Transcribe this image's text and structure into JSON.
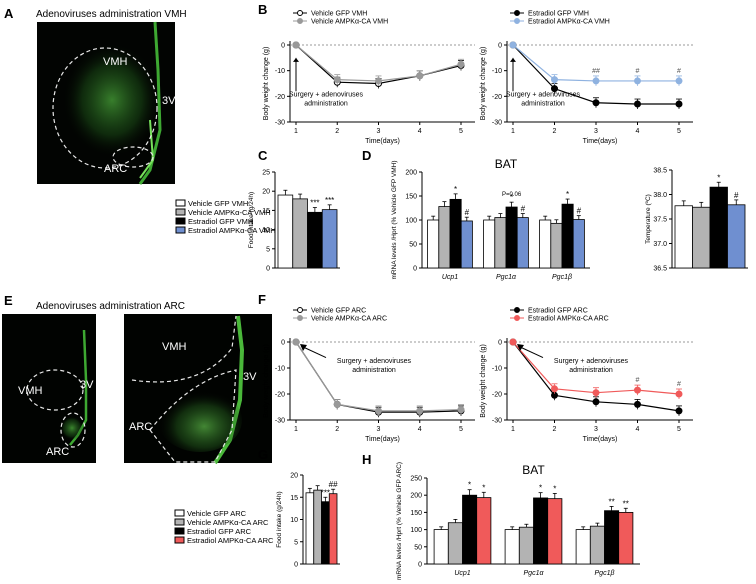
{
  "micro": {
    "a": {
      "letter": "A",
      "title": "Adenoviruses administration VMH",
      "regions": [
        "VMH",
        "3V",
        "ARC"
      ]
    },
    "e": {
      "letter": "E",
      "title": "Adenoviruses administration ARC",
      "regions_left": [
        "VMH",
        "3V",
        "ARC"
      ],
      "regions_right": [
        "VMH",
        "3V",
        "ARC"
      ]
    }
  },
  "legend_vmh": [
    "Vehicle GFP VMH",
    "Vehicle AMPKα-CA VMH",
    "Estradiol GFP VMH",
    "Estradiol AMPKα-CA VMH"
  ],
  "legend_arc": [
    "Vehicle GFP ARC",
    "Vehicle AMPKα-CA ARC",
    "Estradiol GFP ARC",
    "Estradiol AMPKα-CA ARC"
  ],
  "colors": {
    "white": "#ffffff",
    "grey": "#b3b3b3",
    "black": "#000000",
    "blue": "#6f8fd0",
    "red": "#f05a5a",
    "light_blue": "#8fb2e0"
  },
  "chart_data": [
    {
      "panel": "B-left",
      "type": "line",
      "xlabel": "Time(days)",
      "ylabel": "Body weight change (g)",
      "ylim": [
        -30,
        0
      ],
      "yticks": [
        "0",
        "-10",
        "-20",
        "-30"
      ],
      "x": [
        1,
        2,
        3,
        4,
        5
      ],
      "series": [
        {
          "name": "Vehicle GFP VMH",
          "values": [
            0,
            -14.5,
            -15,
            -12,
            -8
          ]
        },
        {
          "name": "Vehicle AMPKα-CA VMH",
          "values": [
            0,
            -13.5,
            -14,
            -12,
            -7.5
          ]
        }
      ],
      "annotation": "Surgery + adenoviruses administration"
    },
    {
      "panel": "B-right",
      "type": "line",
      "xlabel": "Time(days)",
      "ylabel": "Body weight change (g)",
      "ylim": [
        -30,
        0
      ],
      "yticks": [
        "0",
        "-10",
        "-20",
        "-30"
      ],
      "x": [
        1,
        2,
        3,
        4,
        5
      ],
      "series": [
        {
          "name": "Estradiol GFP VMH",
          "values": [
            0,
            -17,
            -22.5,
            -23,
            -23
          ]
        },
        {
          "name": "Estradiol AMPKα-CA VMH",
          "values": [
            0,
            -13.5,
            -14,
            -14,
            -14
          ]
        }
      ],
      "markers": [
        "",
        "",
        "##",
        "#",
        "#"
      ],
      "annotation": "Surgery + adenoviruses administration"
    },
    {
      "panel": "C",
      "type": "bar",
      "ylabel": "Food intake (g/24h)",
      "ylim": [
        0,
        25
      ],
      "yticks": [
        "0",
        "5",
        "10",
        "15",
        "20",
        "25"
      ],
      "values": [
        19,
        18,
        14.5,
        15.2
      ],
      "labels": [
        "",
        "",
        "***",
        "***"
      ]
    },
    {
      "panel": "D",
      "type": "bar",
      "title": "BAT",
      "ylabel": "mRNA levels /Hprt (% Vehicle GFP VMH)",
      "ylim": [
        0,
        200
      ],
      "yticks": [
        "0",
        "50",
        "100",
        "150",
        "200"
      ],
      "categories": [
        "Ucp1",
        "Pgc1α",
        "Pgc1β"
      ],
      "series": [
        {
          "name": "Vehicle GFP VMH",
          "values": [
            100,
            100,
            100
          ]
        },
        {
          "name": "Vehicle AMPKα-CA VMH",
          "values": [
            128,
            105,
            93
          ]
        },
        {
          "name": "Estradiol GFP VMH",
          "values": [
            143,
            127,
            133
          ]
        },
        {
          "name": "Estradiol AMPKα-CA VMH",
          "values": [
            98,
            105,
            101
          ]
        }
      ],
      "marks": [
        [
          "",
          "",
          "*",
          "#"
        ],
        [
          "",
          "",
          "*",
          "#"
        ],
        [
          "",
          "",
          "*",
          "#"
        ]
      ],
      "pvalue": "P=0.06"
    },
    {
      "panel": "D-temp",
      "type": "bar",
      "ylabel": "Temperature (ºC)",
      "ylim": [
        36.5,
        38.5
      ],
      "yticks": [
        "36.5",
        "37.0",
        "37.5",
        "38.0",
        "38.5"
      ],
      "values": [
        37.77,
        37.74,
        38.15,
        37.79
      ],
      "labels": [
        "",
        "",
        "*",
        "#"
      ]
    },
    {
      "panel": "F-left",
      "type": "line",
      "xlabel": "Time(days)",
      "ylabel": "Body weight change (g)",
      "ylim": [
        -30,
        0
      ],
      "yticks": [
        "0",
        "-10",
        "-20",
        "-30"
      ],
      "x": [
        1,
        2,
        3,
        4,
        5
      ],
      "series": [
        {
          "name": "Vehicle GFP ARC",
          "values": [
            0,
            -24,
            -27,
            -27,
            -26.5
          ]
        },
        {
          "name": "Vehicle AMPKα-CA ARC",
          "values": [
            0,
            -24,
            -26.5,
            -26.5,
            -26
          ]
        }
      ],
      "annotation": "Surgery + adenoviruses administration"
    },
    {
      "panel": "F-right",
      "type": "line",
      "xlabel": "Time(days)",
      "ylabel": "Body weight change (g)",
      "ylim": [
        -30,
        0
      ],
      "yticks": [
        "0",
        "-10",
        "-20",
        "-30"
      ],
      "x": [
        1,
        2,
        3,
        4,
        5
      ],
      "series": [
        {
          "name": "Estradiol GFP ARC",
          "values": [
            0,
            -20.5,
            -23,
            -24,
            -26.5
          ]
        },
        {
          "name": "Estradiol AMPKα-CA ARC",
          "values": [
            0,
            -18,
            -19.5,
            -18.5,
            -20
          ]
        }
      ],
      "markers": [
        "",
        "",
        "",
        "#",
        "#"
      ],
      "annotation": "Surgery + adenoviruses administration"
    },
    {
      "panel": "G",
      "type": "bar",
      "ylabel": "Food intake (g/24h)",
      "ylim": [
        0,
        20
      ],
      "yticks": [
        "0",
        "5",
        "10",
        "15",
        "20"
      ],
      "values": [
        16,
        16.6,
        14,
        15.8
      ],
      "labels": [
        "",
        "",
        "***",
        "##"
      ]
    },
    {
      "panel": "H",
      "type": "bar",
      "title": "BAT",
      "ylabel": "mRNA levles /Hprt (% Vehicle GFP ARC)",
      "ylim": [
        0,
        250
      ],
      "yticks": [
        "0",
        "50",
        "100",
        "150",
        "200",
        "250"
      ],
      "categories": [
        "Ucp1",
        "Pgc1α",
        "Pgc1β"
      ],
      "series": [
        {
          "name": "Vehicle GFP ARC",
          "values": [
            100,
            100,
            100
          ]
        },
        {
          "name": "Vehicle AMPKα-CA ARC",
          "values": [
            120,
            107,
            110
          ]
        },
        {
          "name": "Estradiol GFP ARC",
          "values": [
            200,
            192,
            155
          ]
        },
        {
          "name": "Estradiol AMPKα-CA ARC",
          "values": [
            193,
            190,
            150
          ]
        }
      ],
      "marks": [
        [
          "",
          "",
          "*",
          "*"
        ],
        [
          "",
          "",
          "*",
          "*"
        ],
        [
          "",
          "",
          "**",
          "**"
        ]
      ]
    }
  ]
}
